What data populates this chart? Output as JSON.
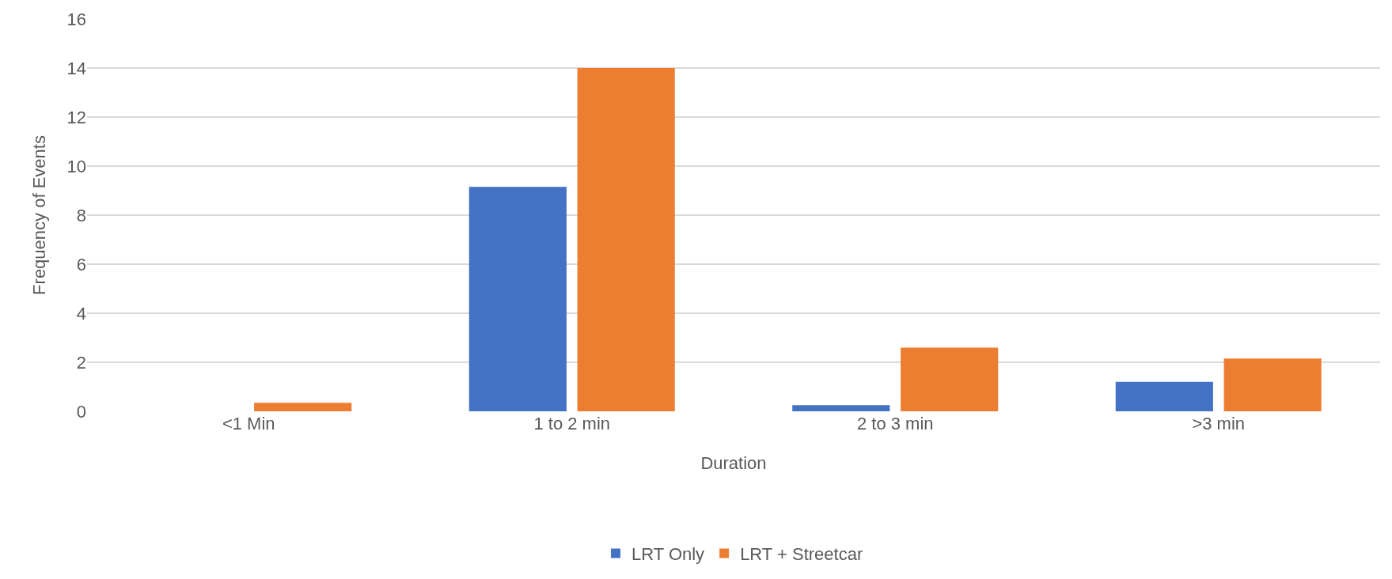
{
  "chart_data": {
    "type": "bar",
    "xlabel": "Duration",
    "ylabel": "Frequency of Events",
    "categories": [
      "<1 Min",
      "1 to 2 min",
      "2 to 3 min",
      ">3 min"
    ],
    "series": [
      {
        "name": "LRT Only",
        "color": "#4472c4",
        "values": [
          0,
          9.15,
          0.25,
          1.2
        ]
      },
      {
        "name": "LRT + Streetcar",
        "color": "#ed7d31",
        "values": [
          0.35,
          14,
          2.6,
          2.15
        ]
      }
    ],
    "ylim": [
      0,
      16
    ],
    "yticks": [
      0,
      2,
      4,
      6,
      8,
      10,
      12,
      14,
      16
    ],
    "grid": "y",
    "legend": "bottom"
  }
}
